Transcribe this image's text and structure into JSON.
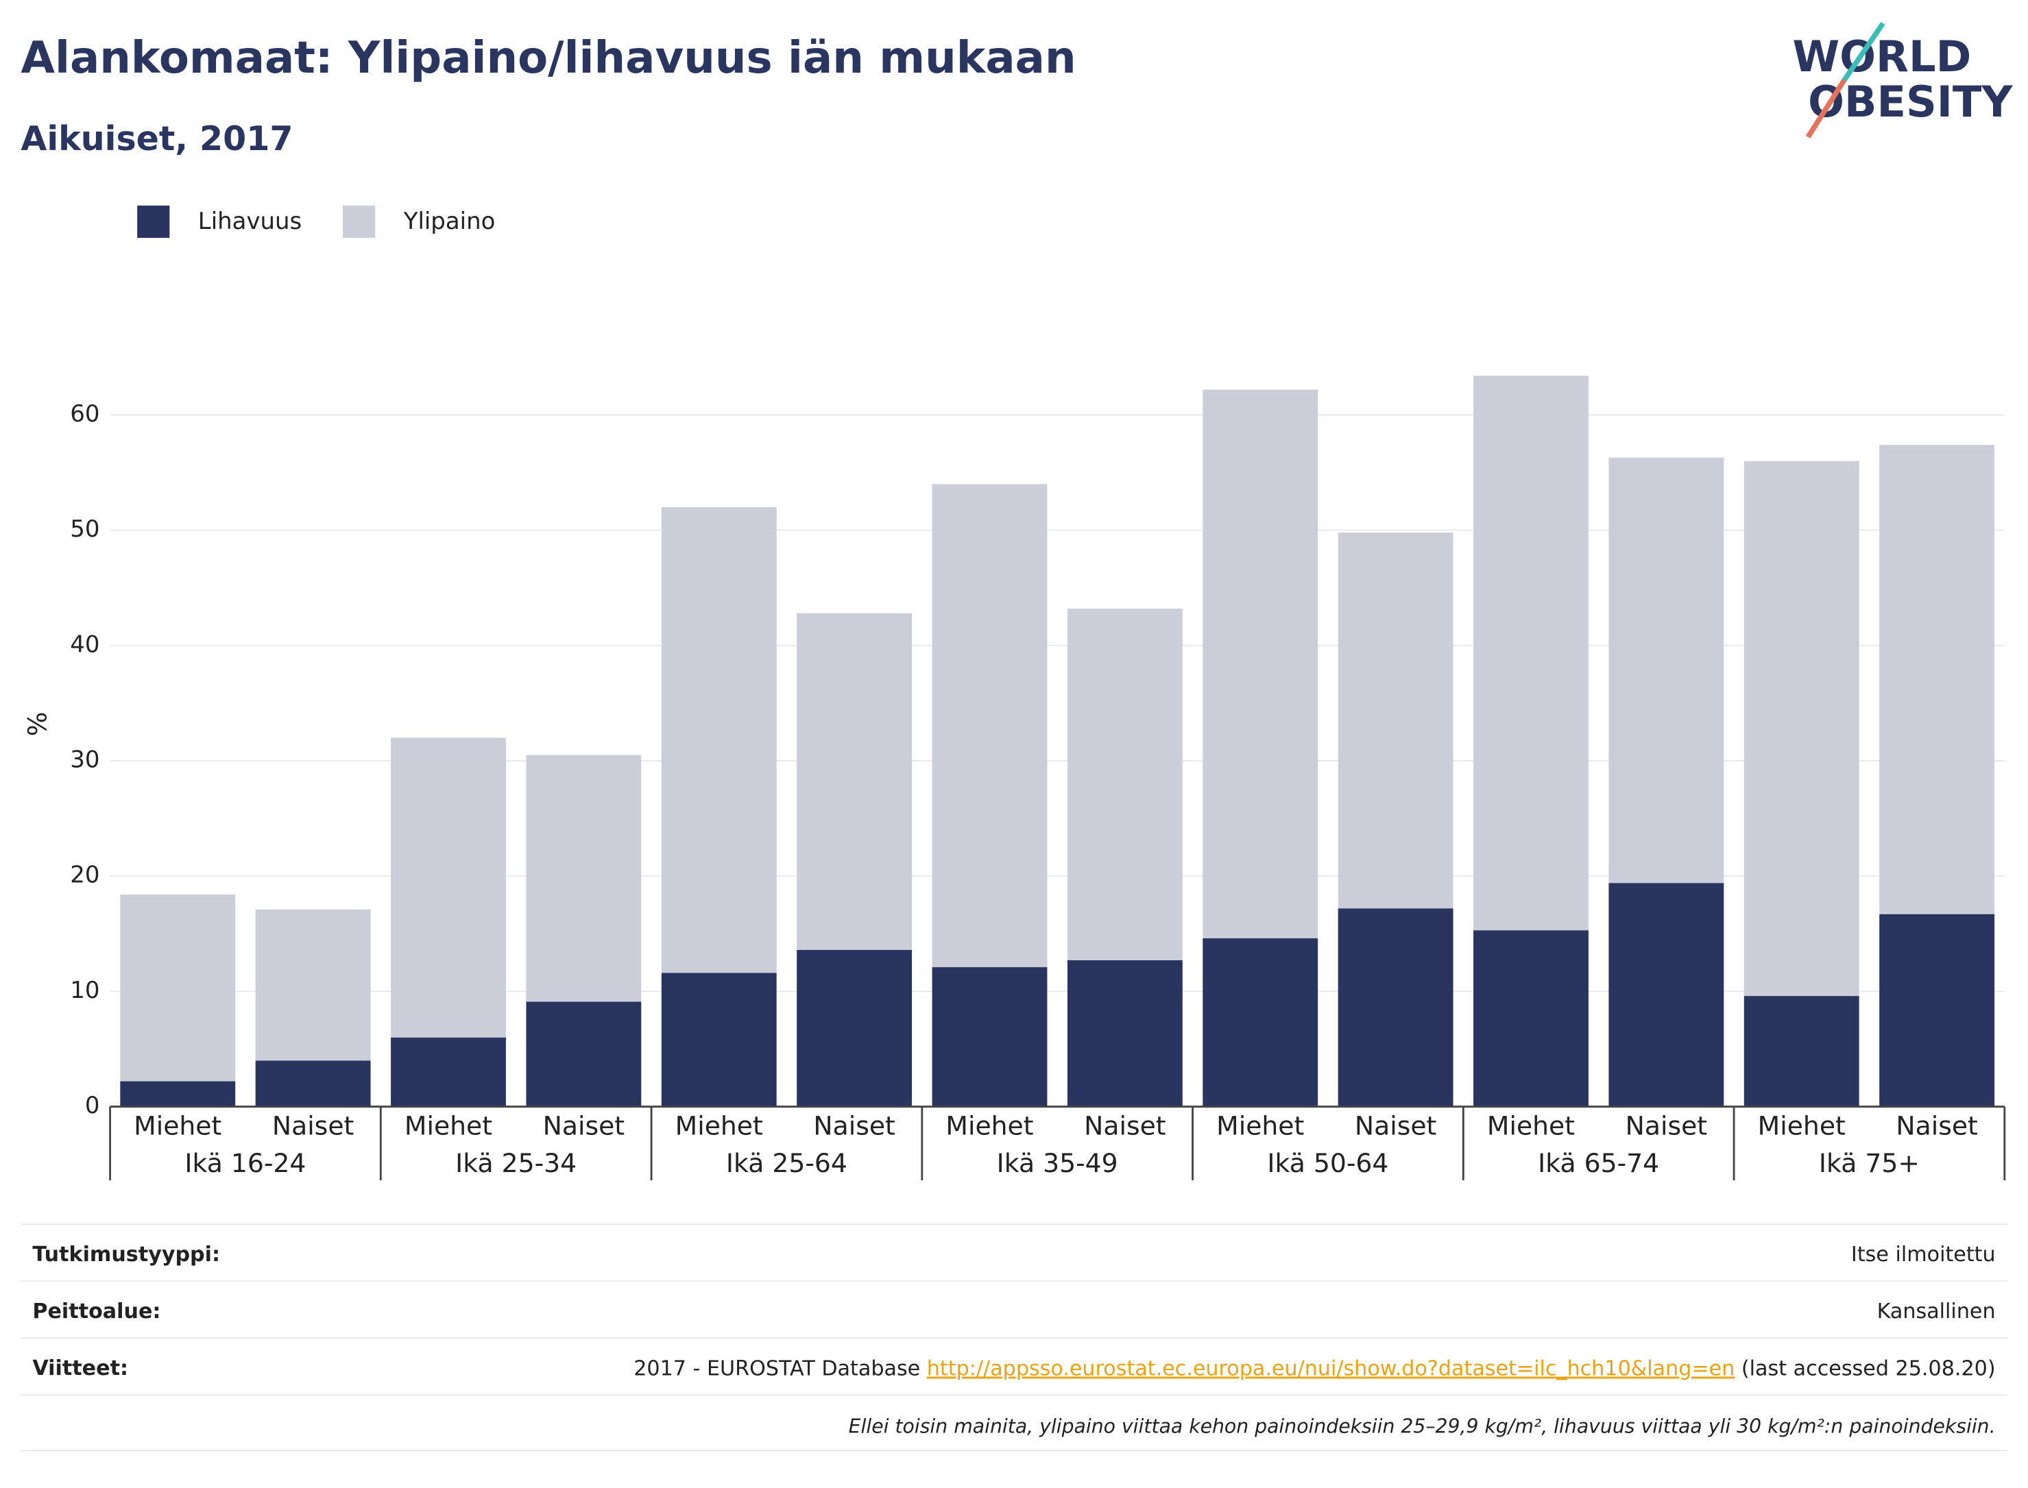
{
  "chart_data": {
    "type": "stacked_bar",
    "title": "Alankomaat: Ylipaino/lihavuus iän mukaan",
    "subtitle": "Aikuiset, 2017",
    "y_label": "%",
    "categories": [
      "Miehet",
      "Naiset",
      "Miehet",
      "Naiset",
      "Miehet",
      "Naiset",
      "Miehet",
      "Naiset",
      "Miehet",
      "Naiset",
      "Miehet",
      "Naiset",
      "Miehet",
      "Naiset"
    ],
    "groups": [
      "Ikä 16-24",
      "Ikä 25-34",
      "Ikä 25-64",
      "Ikä 35-49",
      "Ikä 50-64",
      "Ikä 65-74",
      "Ikä 75+"
    ],
    "series": [
      {
        "name": "Lihavuus",
        "color": "#29355f",
        "values": [
          2.2,
          4.0,
          6.0,
          9.1,
          11.6,
          13.6,
          12.1,
          12.7,
          14.6,
          17.2,
          15.3,
          19.4,
          9.6,
          16.7
        ]
      },
      {
        "name": "Ylipaino",
        "color": "#cbcdd8",
        "values": [
          16.2,
          13.1,
          26.0,
          21.4,
          40.4,
          29.2,
          41.9,
          30.5,
          47.6,
          32.6,
          48.1,
          36.9,
          46.4,
          40.7
        ]
      }
    ],
    "ylim": [
      0,
      65
    ],
    "yticks": [
      0,
      10,
      20,
      30,
      40,
      50,
      60
    ],
    "grid": true,
    "legend": "top-left"
  },
  "logo": {
    "line1": "WORLD",
    "line2": "OBESITY"
  },
  "footer": {
    "rows": [
      {
        "label": "Tutkimustyyppi:",
        "value": "Itse ilmoitettu"
      },
      {
        "label": "Peittoalue:",
        "value": "Kansallinen"
      }
    ],
    "reference": {
      "label": "Viitteet:",
      "prefix": "2017 - EUROSTAT Database ",
      "link": "http://appsso.eurostat.ec.europa.eu/nui/show.do?dataset=ilc_hch10&lang=en",
      "suffix": " (last accessed 25.08.20)"
    },
    "note": "Ellei toisin mainita, ylipaino viittaa kehon painoindeksiin 25–29,9 kg/m², lihavuus viittaa yli 30 kg/m²:n painoindeksiin."
  }
}
